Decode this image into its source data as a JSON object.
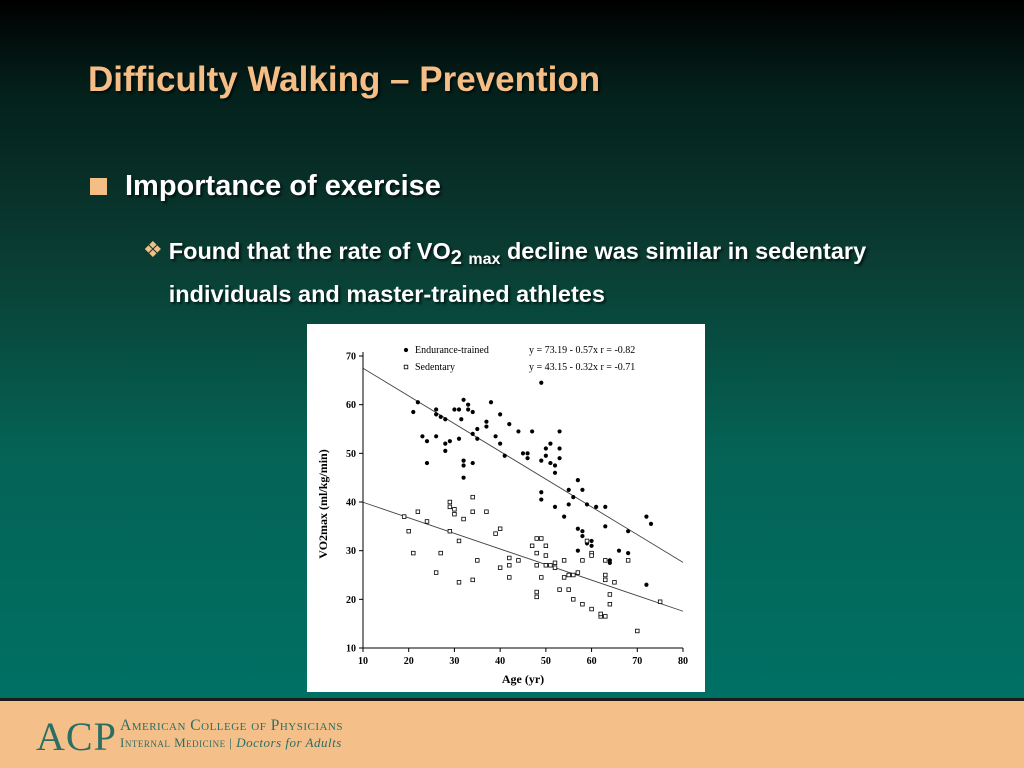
{
  "slide": {
    "title": "Difficulty Walking – Prevention",
    "bullet1": "Importance of exercise",
    "bullet2": {
      "part1": "Found that the rate of VO",
      "sub2": "2",
      "submax": "max",
      "part2": " decline was  similar in sedentary individuals and master-trained athletes"
    }
  },
  "footer": {
    "logo_initials": "ACP",
    "org_name": "American College of Physicians",
    "tagline_left": "Internal Medicine",
    "tagline_sep": "|",
    "tagline_right": "Doctors for Adults"
  },
  "colors": {
    "title": "#f5be86",
    "footer_bg": "#f5bf8a",
    "logo": "#2a6e64"
  },
  "chart_data": {
    "type": "scatter",
    "title": "",
    "xlabel": "Age (yr)",
    "ylabel": "VO2max (ml/kg/min)",
    "xlim": [
      10,
      80
    ],
    "ylim": [
      10,
      70
    ],
    "xticks": [
      10,
      20,
      30,
      40,
      50,
      60,
      70,
      80
    ],
    "yticks": [
      10,
      20,
      30,
      40,
      50,
      60,
      70
    ],
    "legend_position": "top-left",
    "series": [
      {
        "name": "Endurance-trained",
        "marker": "filled-circle",
        "regression": "y = 73.19 - 0.57x    r = -0.82",
        "fit": {
          "intercept": 73.19,
          "slope": -0.57,
          "x_range": [
            10,
            80
          ]
        },
        "points": [
          [
            21,
            58.5
          ],
          [
            22,
            60.5
          ],
          [
            23,
            53.5
          ],
          [
            24,
            52.5
          ],
          [
            24,
            48
          ],
          [
            26,
            59
          ],
          [
            26,
            58
          ],
          [
            26,
            53.5
          ],
          [
            27,
            57.5
          ],
          [
            28,
            57
          ],
          [
            28,
            52
          ],
          [
            29,
            52.5
          ],
          [
            28,
            50.5
          ],
          [
            30,
            59
          ],
          [
            31,
            59
          ],
          [
            31,
            53
          ],
          [
            31.5,
            57
          ],
          [
            32,
            61
          ],
          [
            32,
            47.5
          ],
          [
            32,
            48.5
          ],
          [
            32,
            45
          ],
          [
            33,
            59
          ],
          [
            33,
            60
          ],
          [
            34,
            58.5
          ],
          [
            34,
            54
          ],
          [
            34,
            48
          ],
          [
            35,
            55
          ],
          [
            35,
            53
          ],
          [
            37,
            55.5
          ],
          [
            37,
            56.5
          ],
          [
            38,
            60.5
          ],
          [
            39,
            53.5
          ],
          [
            40,
            52
          ],
          [
            40,
            58
          ],
          [
            41,
            49.5
          ],
          [
            42,
            56
          ],
          [
            44,
            54.5
          ],
          [
            45,
            50
          ],
          [
            46,
            50
          ],
          [
            46,
            49
          ],
          [
            47,
            54.5
          ],
          [
            49,
            64.5
          ],
          [
            49,
            48.5
          ],
          [
            49,
            42
          ],
          [
            49,
            40.5
          ],
          [
            50,
            51
          ],
          [
            50,
            49.5
          ],
          [
            51,
            52
          ],
          [
            51,
            48
          ],
          [
            52,
            47.5
          ],
          [
            52,
            46
          ],
          [
            52,
            39
          ],
          [
            53,
            54.5
          ],
          [
            53,
            51
          ],
          [
            53,
            49
          ],
          [
            54,
            37
          ],
          [
            55,
            42.5
          ],
          [
            55,
            39.5
          ],
          [
            56,
            41
          ],
          [
            57,
            44.5
          ],
          [
            57,
            34.5
          ],
          [
            57,
            30
          ],
          [
            58,
            42.5
          ],
          [
            58,
            33
          ],
          [
            58,
            34
          ],
          [
            59,
            31.5
          ],
          [
            59,
            39.5
          ],
          [
            60,
            31
          ],
          [
            60,
            32
          ],
          [
            61,
            39
          ],
          [
            63,
            35
          ],
          [
            63,
            39
          ],
          [
            64,
            28
          ],
          [
            64,
            27.5
          ],
          [
            66,
            30
          ],
          [
            68,
            29.5
          ],
          [
            68,
            34
          ],
          [
            72,
            37
          ],
          [
            72,
            23
          ],
          [
            73,
            35.5
          ]
        ]
      },
      {
        "name": "Sedentary",
        "marker": "open-square",
        "regression": "y = 43.15 - 0.32x    r = -0.71",
        "fit": {
          "intercept": 43.15,
          "slope": -0.32,
          "x_range": [
            10,
            80
          ]
        },
        "points": [
          [
            19,
            37
          ],
          [
            20,
            34
          ],
          [
            21,
            29.5
          ],
          [
            22,
            38
          ],
          [
            24,
            36
          ],
          [
            26,
            25.5
          ],
          [
            27,
            29.5
          ],
          [
            29,
            40
          ],
          [
            29,
            39
          ],
          [
            29,
            34
          ],
          [
            30,
            37.5
          ],
          [
            30,
            38.5
          ],
          [
            31,
            32
          ],
          [
            31,
            23.5
          ],
          [
            32,
            36.5
          ],
          [
            34,
            41
          ],
          [
            34,
            38
          ],
          [
            34,
            24
          ],
          [
            35,
            28
          ],
          [
            37,
            38
          ],
          [
            39,
            33.5
          ],
          [
            40,
            34.5
          ],
          [
            40,
            26.5
          ],
          [
            42,
            24.5
          ],
          [
            42,
            27
          ],
          [
            42,
            28.5
          ],
          [
            44,
            28
          ],
          [
            47,
            31
          ],
          [
            48,
            32.5
          ],
          [
            48,
            29.5
          ],
          [
            48,
            21.5
          ],
          [
            48,
            20.5
          ],
          [
            48,
            27
          ],
          [
            49,
            32.5
          ],
          [
            49,
            24.5
          ],
          [
            50,
            31
          ],
          [
            50,
            29
          ],
          [
            50,
            27
          ],
          [
            51,
            27
          ],
          [
            52,
            26.5
          ],
          [
            52,
            27.5
          ],
          [
            53,
            22
          ],
          [
            54,
            24.5
          ],
          [
            54,
            28
          ],
          [
            55,
            22
          ],
          [
            55,
            25
          ],
          [
            56,
            20
          ],
          [
            56,
            25
          ],
          [
            57,
            25.5
          ],
          [
            58,
            19
          ],
          [
            58,
            28
          ],
          [
            59,
            32
          ],
          [
            60,
            29.5
          ],
          [
            60,
            29
          ],
          [
            60,
            18
          ],
          [
            62,
            16.5
          ],
          [
            62,
            17
          ],
          [
            63,
            16.5
          ],
          [
            63,
            24
          ],
          [
            63,
            25
          ],
          [
            63,
            28
          ],
          [
            64,
            19
          ],
          [
            64,
            21
          ],
          [
            65,
            23.5
          ],
          [
            68,
            28
          ],
          [
            70,
            13.5
          ],
          [
            75,
            19.5
          ]
        ]
      }
    ]
  }
}
